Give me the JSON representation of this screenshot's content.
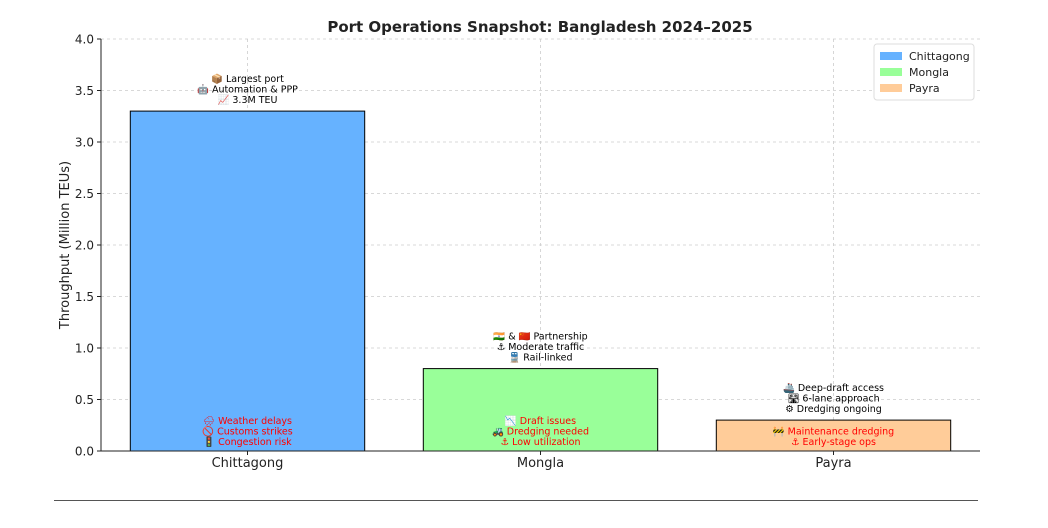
{
  "chart_data": {
    "type": "bar",
    "title": "Port Operations Snapshot: Bangladesh 2024–2025",
    "xlabel": "",
    "ylabel": "Throughput (Million TEUs)",
    "ylim": [
      0,
      4.0
    ],
    "yticks": [
      "0.0",
      "0.5",
      "1.0",
      "1.5",
      "2.0",
      "2.5",
      "3.0",
      "3.5",
      "4.0"
    ],
    "grid": true,
    "legend_position": "top-right",
    "categories": [
      "Chittagong",
      "Mongla",
      "Payra"
    ],
    "values": [
      3.3,
      0.8,
      0.3
    ],
    "colors": [
      "#66b2ff",
      "#99ff99",
      "#ffcc99"
    ],
    "legend": [
      "Chittagong",
      "Mongla",
      "Payra"
    ],
    "annotations_above": [
      [
        "📦 Largest port",
        "🤖 Automation & PPP",
        "📈 3.3M TEU"
      ],
      [
        "🇮🇳 & 🇨🇳 Partnership",
        "⚓ Moderate traffic",
        "🚆 Rail-linked"
      ],
      [
        "🚢 Deep-draft access",
        "🛣 6-lane approach",
        "⚙ Dredging ongoing"
      ]
    ],
    "annotations_inside": [
      [
        "🌧 Weather delays",
        "🚫 Customs strikes",
        "🚦 Congestion risk"
      ],
      [
        "📉 Draft issues",
        "🚜 Dredging needed",
        "⚓ Low utilization"
      ],
      [
        "🚧 Maintenance dredging",
        "⚓ Early-stage ops"
      ]
    ],
    "annotation_colors": {
      "above": "#000000",
      "inside": "#ff0000"
    }
  }
}
